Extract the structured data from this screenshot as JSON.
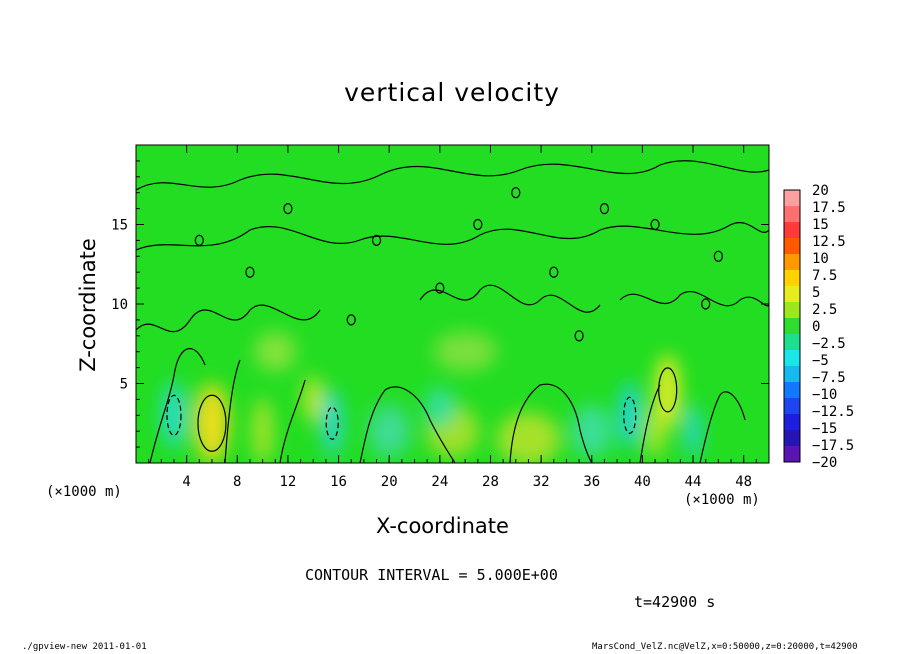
{
  "chart_data": {
    "type": "heatmap",
    "title": "vertical velocity",
    "xlabel": "X-coordinate",
    "ylabel": "Z-coordinate",
    "x_unit": "(×1000 m)",
    "y_unit": "(×1000 m)",
    "xlim": [
      0,
      50
    ],
    "ylim": [
      0,
      20
    ],
    "xticks": [
      4,
      8,
      12,
      16,
      20,
      24,
      28,
      32,
      36,
      40,
      44,
      48
    ],
    "yticks": [
      5,
      10,
      15
    ],
    "contour_interval_text": "CONTOUR INTERVAL = 5.000E+00",
    "time_text": "t=42900 s",
    "colorbar": {
      "levels": [
        "20",
        "17.5",
        "15",
        "12.5",
        "10",
        "7.5",
        "5",
        "2.5",
        "0",
        "−2.5",
        "−5",
        "−7.5",
        "−10",
        "−12.5",
        "−15",
        "−17.5",
        "−20"
      ],
      "colors": [
        "#ff9f9f",
        "#ff6f6f",
        "#ff3a3a",
        "#ff5a00",
        "#ff9900",
        "#ffd200",
        "#e8ec1e",
        "#9ee61e",
        "#2fdc2f",
        "#1ee08c",
        "#19e6e6",
        "#17b9f0",
        "#1478ff",
        "#1e46f0",
        "#1e1ee0",
        "#2814b4",
        "#5a14b4"
      ]
    },
    "field": {
      "background": "#22dd22",
      "cells": [
        {
          "x": 6,
          "z": 2.5,
          "w": 1.6,
          "h": 3.0,
          "value": 8,
          "color": "#f0dc1e"
        },
        {
          "x": 42,
          "z": 4.5,
          "w": 1.2,
          "h": 2.8,
          "value": 6,
          "color": "#e2ec28"
        },
        {
          "x": 41,
          "z": 2.0,
          "w": 1.0,
          "h": 2.0,
          "value": 3,
          "color": "#a8e62a"
        },
        {
          "x": 31,
          "z": 1.5,
          "w": 3.0,
          "h": 2.0,
          "value": 3,
          "color": "#a6e12b"
        },
        {
          "x": 10,
          "z": 2.0,
          "w": 1.0,
          "h": 2.5,
          "value": 3,
          "color": "#a4e32c"
        },
        {
          "x": 25,
          "z": 2.0,
          "w": 2.5,
          "h": 2.0,
          "value": 3,
          "color": "#9fe02c"
        },
        {
          "x": 14,
          "z": 4.0,
          "w": 1.0,
          "h": 1.8,
          "value": 3,
          "color": "#b8e52a"
        },
        {
          "x": 3,
          "z": 3.0,
          "w": 1.2,
          "h": 2.5,
          "value": -5,
          "color": "#2adcc2"
        },
        {
          "x": 15.5,
          "z": 2.5,
          "w": 1.0,
          "h": 2.5,
          "value": -5,
          "color": "#2ed6c8"
        },
        {
          "x": 39,
          "z": 3.0,
          "w": 1.0,
          "h": 2.5,
          "value": -6,
          "color": "#22d4d8"
        },
        {
          "x": 44,
          "z": 2.0,
          "w": 0.8,
          "h": 2.0,
          "value": -5,
          "color": "#28d8c8"
        },
        {
          "x": 24,
          "z": 3.5,
          "w": 1.5,
          "h": 1.5,
          "value": -3,
          "color": "#34de9a"
        },
        {
          "x": 20,
          "z": 2.0,
          "w": 2.0,
          "h": 2.0,
          "value": -3,
          "color": "#3ddc92"
        },
        {
          "x": 36,
          "z": 2.0,
          "w": 2.0,
          "h": 2.0,
          "value": -3,
          "color": "#3ade94"
        },
        {
          "x": 26,
          "z": 7.0,
          "w": 3.0,
          "h": 1.5,
          "value": 2,
          "color": "#7ae03a"
        },
        {
          "x": 11,
          "z": 7.0,
          "w": 2.0,
          "h": 1.5,
          "value": 2,
          "color": "#84e23a"
        }
      ]
    }
  },
  "footer": {
    "left": "./gpview-new  2011-01-01",
    "right": "MarsCond_VelZ.nc@VelZ,x=0:50000,z=0:20000,t=42900"
  }
}
